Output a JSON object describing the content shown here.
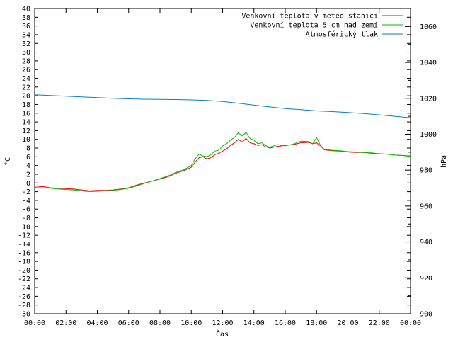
{
  "chart_data": {
    "type": "line",
    "xlabel": "Čas",
    "ylabel": "°C",
    "y2label": "hPa",
    "x_ticks": [
      "00:00",
      "02:00",
      "04:00",
      "06:00",
      "08:00",
      "10:00",
      "12:00",
      "14:00",
      "16:00",
      "18:00",
      "20:00",
      "22:00",
      "00:00"
    ],
    "xlim": [
      0,
      24
    ],
    "ylim": [
      -30,
      40
    ],
    "y_ticks": [
      -30,
      -28,
      -26,
      -24,
      -22,
      -20,
      -18,
      -16,
      -14,
      -12,
      -10,
      -8,
      -6,
      -4,
      -2,
      0,
      2,
      4,
      6,
      8,
      10,
      12,
      14,
      16,
      18,
      20,
      22,
      24,
      26,
      28,
      30,
      32,
      34,
      36,
      38,
      40
    ],
    "y2lim": [
      900,
      1070
    ],
    "y2_ticks": [
      900,
      920,
      940,
      960,
      980,
      1000,
      1020,
      1040,
      1060
    ],
    "grid": false,
    "legend_position": "top-right",
    "series": [
      {
        "name": "Venkovní teplota v meteo stanici",
        "color": "#ff0000",
        "axis": "left",
        "x": [
          0,
          0.5,
          1,
          1.5,
          2,
          2.5,
          3,
          3.5,
          4,
          4.5,
          5,
          5.5,
          6,
          6.5,
          7,
          7.5,
          8,
          8.5,
          9,
          9.5,
          10,
          10.25,
          10.5,
          10.75,
          11,
          11.25,
          11.5,
          11.75,
          12,
          12.25,
          12.5,
          12.75,
          13,
          13.25,
          13.5,
          13.75,
          14,
          14.25,
          14.5,
          14.75,
          15,
          15.5,
          16,
          16.5,
          17,
          17.5,
          17.75,
          18,
          18.25,
          18.5,
          19,
          19.5,
          20,
          20.5,
          21,
          21.5,
          22,
          22.5,
          23,
          23.5,
          24
        ],
        "y": [
          -1.0,
          -0.8,
          -1.1,
          -1.2,
          -1.3,
          -1.4,
          -1.6,
          -1.8,
          -1.7,
          -1.7,
          -1.6,
          -1.4,
          -1.1,
          -0.5,
          0.0,
          0.4,
          0.9,
          1.4,
          2.2,
          2.8,
          3.6,
          4.8,
          5.8,
          6.0,
          5.5,
          5.8,
          6.5,
          6.8,
          7.3,
          7.8,
          8.6,
          9.2,
          10.0,
          9.4,
          10.2,
          9.2,
          9.0,
          8.6,
          8.8,
          8.3,
          8.0,
          8.4,
          8.6,
          8.8,
          9.2,
          9.3,
          9.0,
          9.2,
          8.5,
          7.6,
          7.4,
          7.3,
          7.1,
          7.0,
          7.0,
          6.8,
          6.7,
          6.6,
          6.4,
          6.3,
          6.2
        ]
      },
      {
        "name": "Venkovní teplota 5 cm nad zemí",
        "color": "#00c000",
        "axis": "left",
        "x": [
          0,
          0.5,
          1,
          1.5,
          2,
          2.5,
          3,
          3.5,
          4,
          4.5,
          5,
          5.5,
          6,
          6.5,
          7,
          7.5,
          8,
          8.5,
          9,
          9.5,
          10,
          10.25,
          10.5,
          10.75,
          11,
          11.25,
          11.5,
          11.75,
          12,
          12.25,
          12.5,
          12.75,
          13,
          13.25,
          13.5,
          13.75,
          14,
          14.25,
          14.5,
          14.75,
          15,
          15.5,
          16,
          16.5,
          17,
          17.5,
          17.75,
          18,
          18.25,
          18.5,
          19,
          19.5,
          20,
          20.5,
          21,
          21.5,
          22,
          22.5,
          23,
          23.5,
          24
        ],
        "y": [
          -1.2,
          -1.1,
          -1.2,
          -1.4,
          -1.5,
          -1.6,
          -1.8,
          -2.0,
          -1.9,
          -1.8,
          -1.7,
          -1.5,
          -1.2,
          -0.7,
          -0.1,
          0.4,
          1.0,
          1.6,
          2.4,
          3.0,
          4.0,
          5.6,
          6.6,
          6.2,
          6.0,
          6.5,
          7.3,
          7.5,
          8.5,
          9.0,
          9.8,
          10.4,
          11.5,
          10.8,
          11.6,
          10.2,
          9.8,
          9.0,
          9.2,
          8.6,
          8.2,
          8.8,
          8.5,
          8.9,
          9.6,
          9.5,
          9.0,
          10.4,
          8.6,
          7.7,
          7.5,
          7.4,
          7.2,
          7.1,
          7.0,
          6.9,
          6.7,
          6.6,
          6.4,
          6.3,
          6.1
        ]
      },
      {
        "name": "Atmosférický tlak",
        "color": "#0080d0",
        "axis": "right",
        "x": [
          0,
          1,
          2,
          3,
          4,
          5,
          6,
          7,
          8,
          9,
          10,
          11,
          12,
          13,
          14,
          15,
          16,
          17,
          18,
          19,
          20,
          21,
          22,
          23,
          24
        ],
        "y": [
          1022,
          1021.6,
          1021.2,
          1020.8,
          1020.4,
          1020.0,
          1019.7,
          1019.5,
          1019.4,
          1019.3,
          1019.1,
          1018.8,
          1018.2,
          1017.3,
          1016.2,
          1015.2,
          1014.3,
          1013.7,
          1013.0,
          1012.6,
          1012.1,
          1011.5,
          1010.8,
          1010.0,
          1009.2
        ]
      }
    ]
  }
}
